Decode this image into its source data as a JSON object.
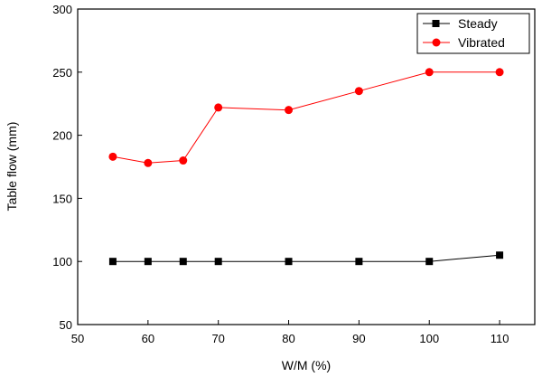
{
  "chart_data": {
    "type": "line",
    "title": "",
    "xlabel": "W/M (%)",
    "ylabel": "Table flow (mm)",
    "xlim": [
      50,
      115
    ],
    "ylim": [
      50,
      300
    ],
    "xticks": [
      50,
      60,
      70,
      80,
      90,
      100,
      110
    ],
    "yticks": [
      50,
      100,
      150,
      200,
      250,
      300
    ],
    "x": [
      55,
      60,
      65,
      70,
      80,
      90,
      100,
      110
    ],
    "series": [
      {
        "name": "Steady",
        "values": [
          100,
          100,
          100,
          100,
          100,
          100,
          100,
          105
        ],
        "color": "#000000",
        "marker": "square"
      },
      {
        "name": "Vibrated",
        "values": [
          183,
          178,
          180,
          222,
          220,
          235,
          250,
          250
        ],
        "color": "#ff0000",
        "marker": "circle"
      }
    ],
    "grid": false,
    "legend_position": "top-right"
  }
}
